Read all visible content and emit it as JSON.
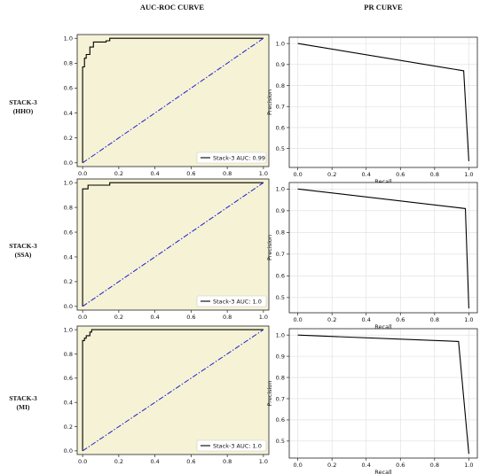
{
  "headers": {
    "roc": "AUC-ROC CURVE",
    "pr": "PR CURVE"
  },
  "rows": [
    {
      "label_line1": "STACK-3",
      "label_line2": "(HHO)"
    },
    {
      "label_line1": "STACK-3",
      "label_line2": "(SSA)"
    },
    {
      "label_line1": "STACK-3",
      "label_line2": "(MI)"
    }
  ],
  "colors": {
    "roc_bg": "#f5f2d6",
    "curve": "#000000",
    "diagonal": "#2222cc",
    "pr_bg": "#ffffff",
    "grid": "#dddddd"
  },
  "chart_data": [
    {
      "type": "line",
      "panel": "roc-hho",
      "xlim": [
        0,
        1
      ],
      "ylim": [
        0,
        1
      ],
      "xticks": [
        "0.0",
        "0.2",
        "0.4",
        "0.6",
        "0.8",
        "1.0"
      ],
      "yticks": [
        "0.0",
        "0.2",
        "0.4",
        "0.6",
        "0.8",
        "1.0"
      ],
      "grid": false,
      "legend_position": "lower-right",
      "series": [
        {
          "name": "Stack-3 AUC: 0.99",
          "style": "solid",
          "x": [
            0,
            0,
            0.01,
            0.01,
            0.02,
            0.02,
            0.04,
            0.04,
            0.06,
            0.06,
            0.13,
            0.13,
            0.15,
            0.15,
            1.0
          ],
          "y": [
            0,
            0.77,
            0.77,
            0.84,
            0.84,
            0.87,
            0.87,
            0.93,
            0.93,
            0.97,
            0.97,
            0.98,
            0.98,
            1.0,
            1.0
          ]
        },
        {
          "style": "dashdot",
          "x": [
            0,
            1
          ],
          "y": [
            0,
            1
          ]
        }
      ]
    },
    {
      "type": "line",
      "panel": "pr-hho",
      "xlim": [
        -0.05,
        1.05
      ],
      "ylim": [
        0.41,
        1.03
      ],
      "xticks": [
        "0.0",
        "0.2",
        "0.4",
        "0.6",
        "0.8",
        "1.0"
      ],
      "yticks": [
        "0.5",
        "0.6",
        "0.7",
        "0.8",
        "0.9",
        "1.0"
      ],
      "xlabel": "Recall",
      "ylabel": "Precision",
      "grid": true,
      "series": [
        {
          "x": [
            0.0,
            0.97,
            1.0
          ],
          "y": [
            1.0,
            0.87,
            0.44
          ]
        }
      ]
    },
    {
      "type": "line",
      "panel": "roc-ssa",
      "xlim": [
        0,
        1
      ],
      "ylim": [
        0,
        1
      ],
      "xticks": [
        "0.0",
        "0.2",
        "0.4",
        "0.6",
        "0.8",
        "1.0"
      ],
      "yticks": [
        "0.0",
        "0.2",
        "0.4",
        "0.6",
        "0.8",
        "1.0"
      ],
      "grid": false,
      "legend_position": "lower-right",
      "series": [
        {
          "name": "Stack-3 AUC: 1.0",
          "style": "solid",
          "x": [
            0,
            0,
            0.03,
            0.03,
            0.15,
            0.15,
            1.0
          ],
          "y": [
            0,
            0.95,
            0.95,
            0.98,
            0.98,
            1.0,
            1.0
          ]
        },
        {
          "style": "dashdot",
          "x": [
            0,
            1
          ],
          "y": [
            0,
            1
          ]
        }
      ]
    },
    {
      "type": "line",
      "panel": "pr-ssa",
      "xlim": [
        -0.05,
        1.05
      ],
      "ylim": [
        0.43,
        1.03
      ],
      "xticks": [
        "0.0",
        "0.2",
        "0.4",
        "0.6",
        "0.8",
        "1.0"
      ],
      "yticks": [
        "0.5",
        "0.6",
        "0.7",
        "0.8",
        "0.9",
        "1.0"
      ],
      "xlabel": "Recall",
      "ylabel": "Precision",
      "grid": true,
      "series": [
        {
          "x": [
            0.0,
            0.98,
            1.0
          ],
          "y": [
            1.0,
            0.91,
            0.45
          ]
        }
      ]
    },
    {
      "type": "line",
      "panel": "roc-mi",
      "xlim": [
        0,
        1
      ],
      "ylim": [
        0,
        1
      ],
      "xticks": [
        "0.0",
        "0.2",
        "0.4",
        "0.6",
        "0.8",
        "1.0"
      ],
      "yticks": [
        "0.0",
        "0.2",
        "0.4",
        "0.6",
        "0.8",
        "1.0"
      ],
      "grid": false,
      "legend_position": "lower-right",
      "series": [
        {
          "name": "Stack-3 AUC: 1.0",
          "style": "solid",
          "x": [
            0,
            0,
            0.01,
            0.01,
            0.02,
            0.02,
            0.04,
            0.04,
            0.05,
            0.05,
            1.0
          ],
          "y": [
            0,
            0.91,
            0.91,
            0.93,
            0.93,
            0.95,
            0.95,
            0.98,
            0.98,
            1.0,
            1.0
          ]
        },
        {
          "style": "dashdot",
          "x": [
            0,
            1
          ],
          "y": [
            0,
            1
          ]
        }
      ]
    },
    {
      "type": "line",
      "panel": "pr-mi",
      "xlim": [
        -0.05,
        1.05
      ],
      "ylim": [
        0.42,
        1.03
      ],
      "xticks": [
        "0.0",
        "0.2",
        "0.4",
        "0.6",
        "0.8",
        "1.0"
      ],
      "yticks": [
        "0.5",
        "0.6",
        "0.7",
        "0.8",
        "0.9",
        "1.0"
      ],
      "xlabel": "Recall",
      "ylabel": "Precision",
      "grid": true,
      "series": [
        {
          "x": [
            0.0,
            0.94,
            1.0
          ],
          "y": [
            1.0,
            0.97,
            0.44
          ]
        }
      ]
    }
  ]
}
